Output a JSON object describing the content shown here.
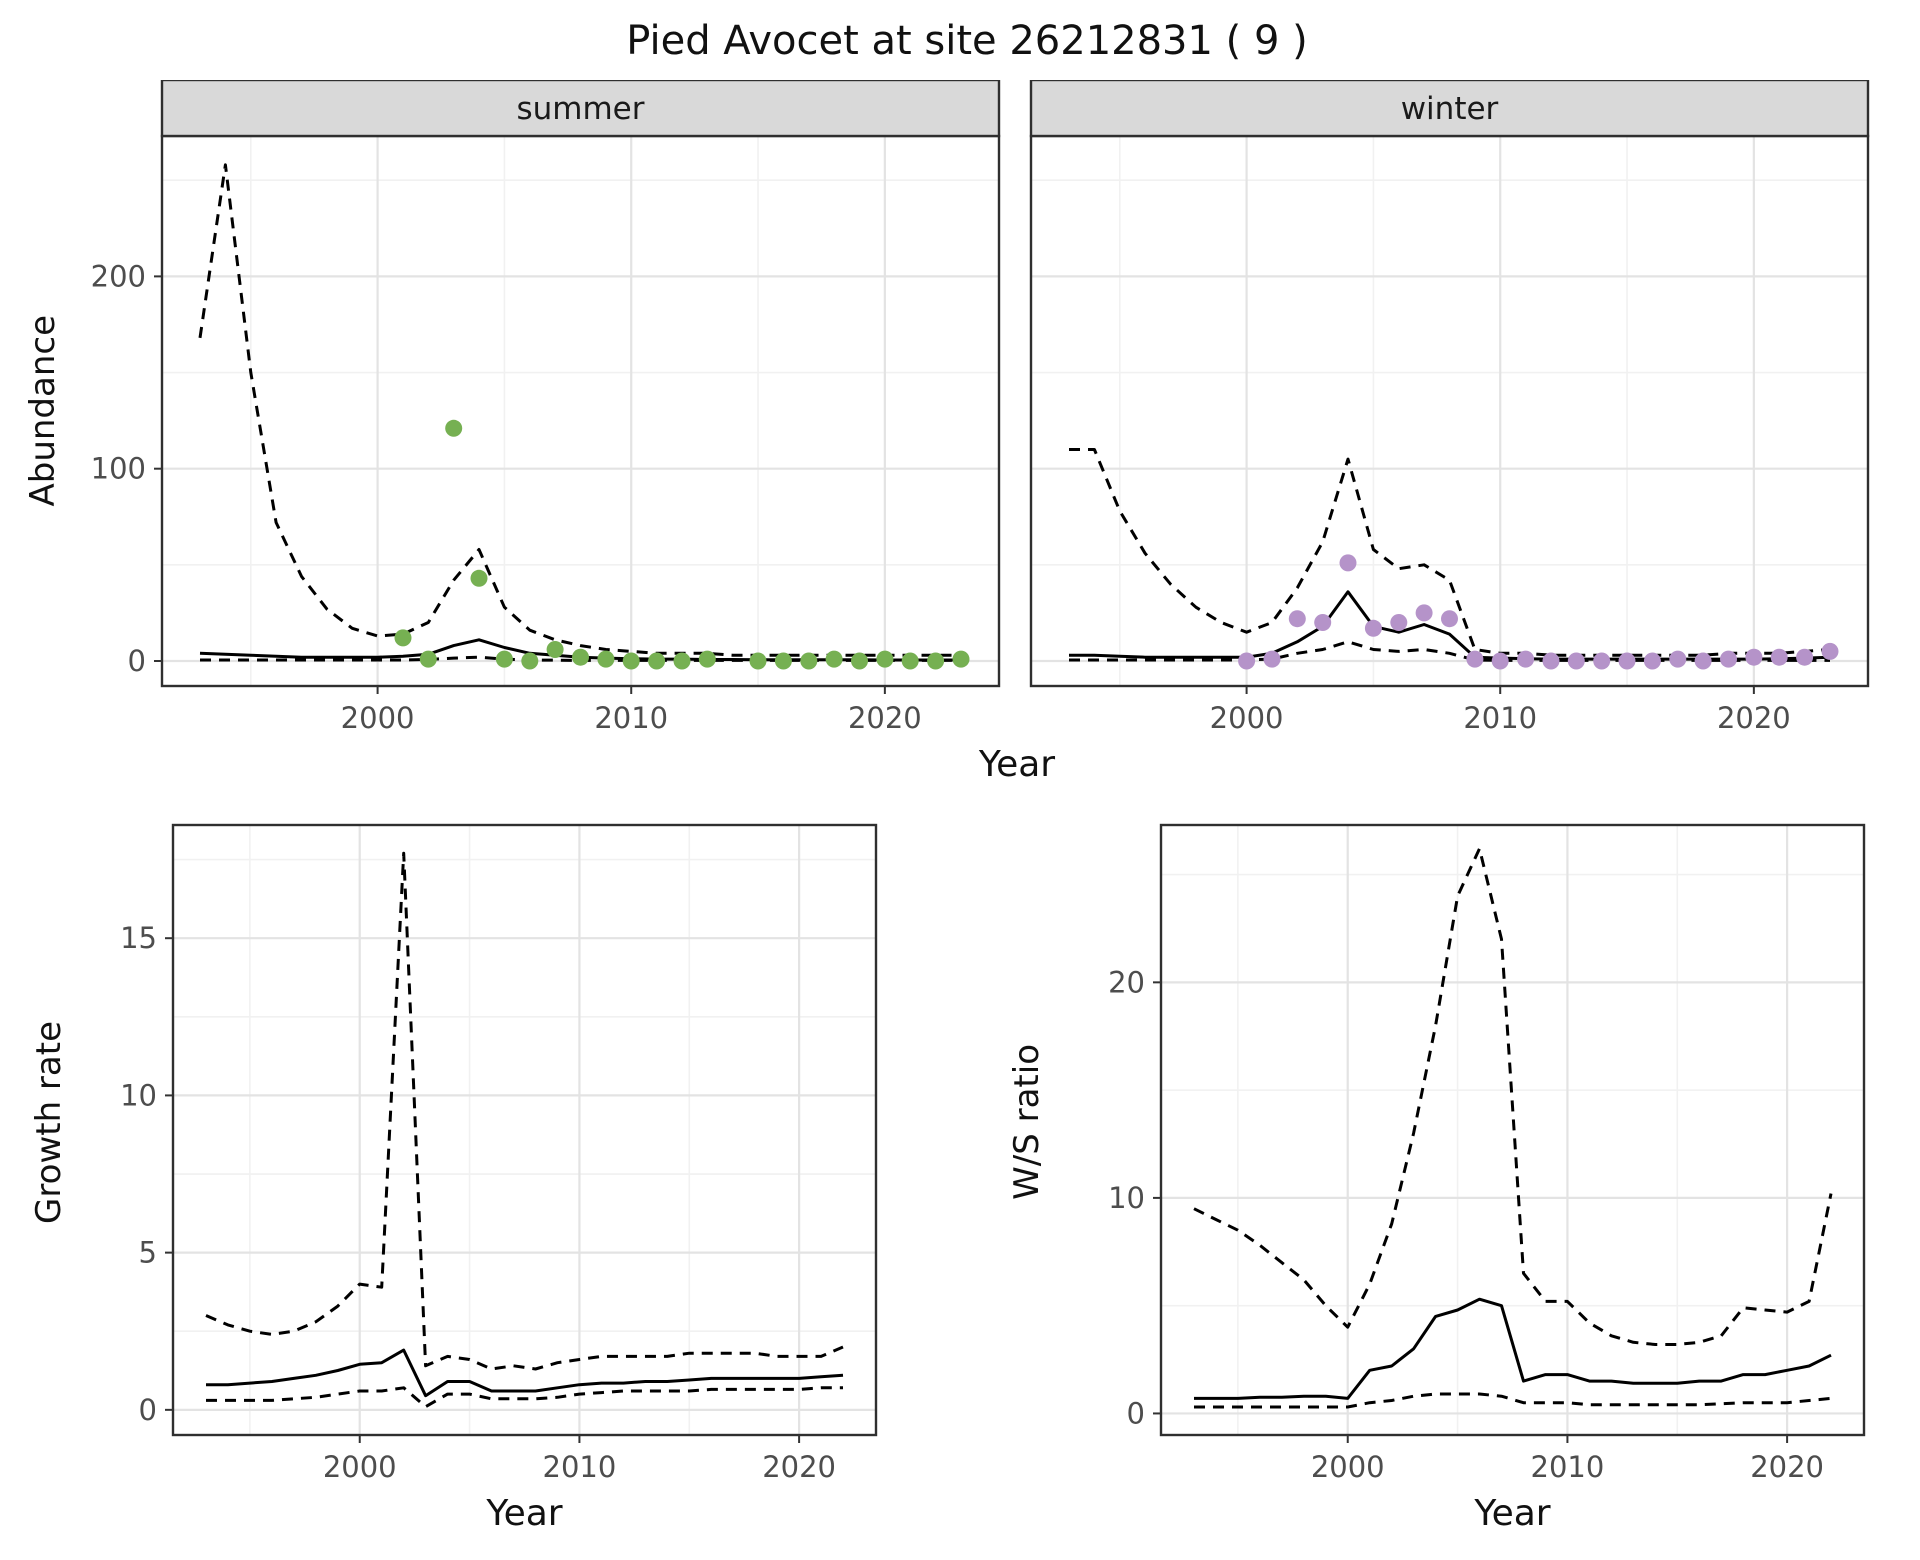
{
  "title": "Pied Avocet at site 26212831 ( 9 )",
  "top": {
    "ylabel": "Abundance",
    "xlabel": "Year",
    "facets": [
      {
        "label": "summer"
      },
      {
        "label": "winter"
      }
    ]
  },
  "bottom": {
    "growth": {
      "ylabel": "Growth rate",
      "xlabel": "Year"
    },
    "ws": {
      "ylabel": "W/S ratio",
      "xlabel": "Year"
    }
  },
  "colors": {
    "summer_points": "#76B052",
    "winter_points": "#B593C9",
    "line": "#000000",
    "strip_bg": "#D9D9D9"
  },
  "chart_data": [
    {
      "id": "abundance_summer",
      "type": "line",
      "facet_label": "summer",
      "xlabel": "Year",
      "ylabel": "Abundance",
      "xlim": [
        1991.5,
        2024.5
      ],
      "ylim": [
        -13,
        273
      ],
      "xticks": [
        2000,
        2010,
        2020
      ],
      "xticks_minor": [
        1995,
        2005,
        2015
      ],
      "yticks": [
        0,
        100,
        200
      ],
      "yticks_minor": [
        50,
        150,
        250
      ],
      "series": [
        {
          "name": "upper_ci",
          "style": "dashed",
          "x": [
            1993,
            1994,
            1995,
            1996,
            1997,
            1998,
            1999,
            2000,
            2001,
            2002,
            2003,
            2004,
            2005,
            2006,
            2007,
            2008,
            2009,
            2010,
            2011,
            2012,
            2013,
            2014,
            2015,
            2016,
            2017,
            2018,
            2019,
            2020,
            2021,
            2022,
            2023
          ],
          "y": [
            168,
            258,
            150,
            72,
            44,
            27,
            17,
            13,
            14,
            20,
            42,
            58,
            28,
            16,
            11,
            8,
            6,
            5,
            4,
            4,
            4,
            3,
            3,
            3,
            3,
            3,
            3,
            3,
            3,
            3,
            3
          ]
        },
        {
          "name": "fit",
          "style": "solid",
          "x": [
            1993,
            1994,
            1995,
            1996,
            1997,
            1998,
            1999,
            2000,
            2001,
            2002,
            2003,
            2004,
            2005,
            2006,
            2007,
            2008,
            2009,
            2010,
            2011,
            2012,
            2013,
            2014,
            2015,
            2016,
            2017,
            2018,
            2019,
            2020,
            2021,
            2022,
            2023
          ],
          "y": [
            4,
            3.5,
            3,
            2.5,
            2,
            2,
            2,
            2,
            2.5,
            3.5,
            8,
            11,
            7,
            4,
            3,
            2,
            1.5,
            1.2,
            1,
            1,
            0.8,
            0.8,
            0.7,
            0.7,
            0.6,
            0.6,
            0.6,
            0.5,
            0.5,
            0.5,
            0.5
          ]
        },
        {
          "name": "lower_ci",
          "style": "dashed",
          "x": [
            1993,
            1994,
            1995,
            1996,
            1997,
            1998,
            1999,
            2000,
            2001,
            2002,
            2003,
            2004,
            2005,
            2006,
            2007,
            2008,
            2009,
            2010,
            2011,
            2012,
            2013,
            2014,
            2015,
            2016,
            2017,
            2018,
            2019,
            2020,
            2021,
            2022,
            2023
          ],
          "y": [
            0.5,
            0.5,
            0.5,
            0.5,
            0.5,
            0.5,
            0.5,
            0.5,
            0.5,
            0.8,
            1.5,
            2,
            1,
            0.5,
            0.4,
            0.3,
            0.3,
            0.3,
            0.3,
            0.3,
            0.3,
            0.3,
            0.3,
            0.3,
            0.3,
            0.3,
            0.3,
            0.3,
            0.3,
            0.3,
            0.3
          ]
        }
      ],
      "points": {
        "name": "summer_observations",
        "color": "#76B052",
        "x": [
          2001,
          2002,
          2003,
          2004,
          2005,
          2006,
          2007,
          2008,
          2009,
          2010,
          2011,
          2012,
          2013,
          2015,
          2016,
          2017,
          2018,
          2019,
          2020,
          2021,
          2022,
          2023
        ],
        "y": [
          12,
          1,
          121,
          43,
          1,
          0,
          6,
          2,
          1,
          0,
          0,
          0,
          1,
          0,
          0,
          0,
          1,
          0,
          1,
          0,
          0,
          1
        ]
      }
    },
    {
      "id": "abundance_winter",
      "type": "line",
      "facet_label": "winter",
      "xlabel": "Year",
      "ylabel": "Abundance",
      "xlim": [
        1991.5,
        2024.5
      ],
      "ylim": [
        -13,
        273
      ],
      "xticks": [
        2000,
        2010,
        2020
      ],
      "xticks_minor": [
        1995,
        2005,
        2015
      ],
      "yticks": [
        0,
        100,
        200
      ],
      "yticks_minor": [
        50,
        150,
        250
      ],
      "series": [
        {
          "name": "upper_ci",
          "style": "dashed",
          "x": [
            1993,
            1994,
            1995,
            1996,
            1997,
            1998,
            1999,
            2000,
            2001,
            2002,
            2003,
            2004,
            2005,
            2006,
            2007,
            2008,
            2009,
            2010,
            2011,
            2012,
            2013,
            2014,
            2015,
            2016,
            2017,
            2018,
            2019,
            2020,
            2021,
            2022,
            2023
          ],
          "y": [
            110,
            110,
            78,
            56,
            40,
            28,
            20,
            15,
            20,
            38,
            62,
            105,
            58,
            48,
            50,
            42,
            6,
            4,
            4,
            3,
            3,
            3,
            3,
            3,
            3,
            3,
            4,
            4,
            4,
            5,
            6
          ]
        },
        {
          "name": "fit",
          "style": "solid",
          "x": [
            1993,
            1994,
            1995,
            1996,
            1997,
            1998,
            1999,
            2000,
            2001,
            2002,
            2003,
            2004,
            2005,
            2006,
            2007,
            2008,
            2009,
            2010,
            2011,
            2012,
            2013,
            2014,
            2015,
            2016,
            2017,
            2018,
            2019,
            2020,
            2021,
            2022,
            2023
          ],
          "y": [
            3,
            3,
            2.5,
            2,
            2,
            2,
            2,
            2,
            4,
            10,
            18,
            36,
            18,
            15,
            19,
            14,
            2,
            1.5,
            1.2,
            1,
            1,
            1,
            1,
            1,
            1,
            1,
            1,
            1,
            1.2,
            1.5,
            2
          ]
        },
        {
          "name": "lower_ci",
          "style": "dashed",
          "x": [
            1993,
            1994,
            1995,
            1996,
            1997,
            1998,
            1999,
            2000,
            2001,
            2002,
            2003,
            2004,
            2005,
            2006,
            2007,
            2008,
            2009,
            2010,
            2011,
            2012,
            2013,
            2014,
            2015,
            2016,
            2017,
            2018,
            2019,
            2020,
            2021,
            2022,
            2023
          ],
          "y": [
            0.5,
            0.5,
            0.5,
            0.5,
            0.5,
            0.5,
            0.5,
            0.5,
            1,
            4,
            6,
            10,
            6,
            5,
            6,
            4,
            0.5,
            0.3,
            0.3,
            0.3,
            0.3,
            0.3,
            0.3,
            0.3,
            0.3,
            0.3,
            0.3,
            0.3,
            0.3,
            0.3,
            0.3
          ]
        }
      ],
      "points": {
        "name": "winter_observations",
        "color": "#B593C9",
        "x": [
          2000,
          2001,
          2002,
          2003,
          2004,
          2005,
          2006,
          2007,
          2008,
          2009,
          2010,
          2011,
          2012,
          2013,
          2014,
          2015,
          2016,
          2017,
          2018,
          2019,
          2020,
          2021,
          2022,
          2023
        ],
        "y": [
          0,
          1,
          22,
          20,
          51,
          17,
          20,
          25,
          22,
          1,
          0,
          1,
          0,
          0,
          0,
          0,
          0,
          1,
          0,
          1,
          2,
          2,
          2,
          5
        ]
      }
    },
    {
      "id": "growth_rate",
      "type": "line",
      "xlabel": "Year",
      "ylabel": "Growth rate",
      "xlim": [
        1991.5,
        2023.5
      ],
      "ylim": [
        -0.8,
        18.6
      ],
      "xticks": [
        2000,
        2010,
        2020
      ],
      "xticks_minor": [
        1995,
        2005,
        2015
      ],
      "yticks": [
        0,
        5,
        10,
        15
      ],
      "yticks_minor": [
        2.5,
        7.5,
        12.5,
        17.5
      ],
      "series": [
        {
          "name": "upper_ci",
          "style": "dashed",
          "x": [
            1993,
            1994,
            1995,
            1996,
            1997,
            1998,
            1999,
            2000,
            2001,
            2002,
            2003,
            2004,
            2005,
            2006,
            2007,
            2008,
            2009,
            2010,
            2011,
            2012,
            2013,
            2014,
            2015,
            2016,
            2017,
            2018,
            2019,
            2020,
            2021,
            2022
          ],
          "y": [
            3.0,
            2.7,
            2.5,
            2.4,
            2.5,
            2.8,
            3.3,
            4.0,
            3.9,
            17.7,
            1.4,
            1.7,
            1.6,
            1.3,
            1.4,
            1.3,
            1.5,
            1.6,
            1.7,
            1.7,
            1.7,
            1.7,
            1.8,
            1.8,
            1.8,
            1.8,
            1.7,
            1.7,
            1.7,
            2.0
          ]
        },
        {
          "name": "fit",
          "style": "solid",
          "x": [
            1993,
            1994,
            1995,
            1996,
            1997,
            1998,
            1999,
            2000,
            2001,
            2002,
            2003,
            2004,
            2005,
            2006,
            2007,
            2008,
            2009,
            2010,
            2011,
            2012,
            2013,
            2014,
            2015,
            2016,
            2017,
            2018,
            2019,
            2020,
            2021,
            2022
          ],
          "y": [
            0.8,
            0.8,
            0.85,
            0.9,
            1.0,
            1.1,
            1.25,
            1.45,
            1.5,
            1.9,
            0.45,
            0.9,
            0.9,
            0.6,
            0.6,
            0.6,
            0.7,
            0.8,
            0.85,
            0.85,
            0.9,
            0.9,
            0.95,
            1.0,
            1.0,
            1.0,
            1.0,
            1.0,
            1.05,
            1.1
          ]
        },
        {
          "name": "lower_ci",
          "style": "dashed",
          "x": [
            1993,
            1994,
            1995,
            1996,
            1997,
            1998,
            1999,
            2000,
            2001,
            2002,
            2003,
            2004,
            2005,
            2006,
            2007,
            2008,
            2009,
            2010,
            2011,
            2012,
            2013,
            2014,
            2015,
            2016,
            2017,
            2018,
            2019,
            2020,
            2021,
            2022
          ],
          "y": [
            0.3,
            0.3,
            0.3,
            0.3,
            0.35,
            0.4,
            0.5,
            0.6,
            0.6,
            0.7,
            0.1,
            0.5,
            0.5,
            0.35,
            0.35,
            0.35,
            0.4,
            0.5,
            0.55,
            0.6,
            0.6,
            0.6,
            0.6,
            0.65,
            0.65,
            0.65,
            0.65,
            0.65,
            0.7,
            0.7
          ]
        }
      ]
    },
    {
      "id": "ws_ratio",
      "type": "line",
      "xlabel": "Year",
      "ylabel": "W/S ratio",
      "xlim": [
        1991.5,
        2023.5
      ],
      "ylim": [
        -1,
        27.3
      ],
      "xticks": [
        2000,
        2010,
        2020
      ],
      "xticks_minor": [
        1995,
        2005,
        2015
      ],
      "yticks": [
        0,
        10,
        20
      ],
      "yticks_minor": [
        5,
        15,
        25
      ],
      "series": [
        {
          "name": "upper_ci",
          "style": "dashed",
          "x": [
            1993,
            1994,
            1995,
            1996,
            1997,
            1998,
            1999,
            2000,
            2001,
            2002,
            2003,
            2004,
            2005,
            2006,
            2007,
            2008,
            2009,
            2010,
            2011,
            2012,
            2013,
            2014,
            2015,
            2016,
            2017,
            2018,
            2019,
            2020,
            2021,
            2022
          ],
          "y": [
            9.5,
            9.0,
            8.5,
            7.8,
            7.0,
            6.2,
            5.0,
            4.0,
            6.0,
            8.8,
            13,
            18,
            24,
            26.2,
            22,
            6.5,
            5.2,
            5.2,
            4.2,
            3.6,
            3.3,
            3.2,
            3.2,
            3.3,
            3.6,
            4.9,
            4.8,
            4.7,
            5.2,
            10.2
          ]
        },
        {
          "name": "fit",
          "style": "solid",
          "x": [
            1993,
            1994,
            1995,
            1996,
            1997,
            1998,
            1999,
            2000,
            2001,
            2002,
            2003,
            2004,
            2005,
            2006,
            2007,
            2008,
            2009,
            2010,
            2011,
            2012,
            2013,
            2014,
            2015,
            2016,
            2017,
            2018,
            2019,
            2020,
            2021,
            2022
          ],
          "y": [
            0.7,
            0.7,
            0.7,
            0.75,
            0.75,
            0.8,
            0.8,
            0.7,
            2.0,
            2.2,
            3.0,
            4.5,
            4.8,
            5.3,
            5.0,
            1.5,
            1.8,
            1.8,
            1.5,
            1.5,
            1.4,
            1.4,
            1.4,
            1.5,
            1.5,
            1.8,
            1.8,
            2.0,
            2.2,
            2.7
          ]
        },
        {
          "name": "lower_ci",
          "style": "dashed",
          "x": [
            1993,
            1994,
            1995,
            1996,
            1997,
            1998,
            1999,
            2000,
            2001,
            2002,
            2003,
            2004,
            2005,
            2006,
            2007,
            2008,
            2009,
            2010,
            2011,
            2012,
            2013,
            2014,
            2015,
            2016,
            2017,
            2018,
            2019,
            2020,
            2021,
            2022
          ],
          "y": [
            0.3,
            0.3,
            0.3,
            0.3,
            0.3,
            0.3,
            0.3,
            0.3,
            0.5,
            0.6,
            0.8,
            0.9,
            0.9,
            0.9,
            0.8,
            0.5,
            0.5,
            0.5,
            0.4,
            0.4,
            0.4,
            0.4,
            0.4,
            0.4,
            0.45,
            0.5,
            0.5,
            0.5,
            0.6,
            0.7
          ]
        }
      ]
    }
  ]
}
